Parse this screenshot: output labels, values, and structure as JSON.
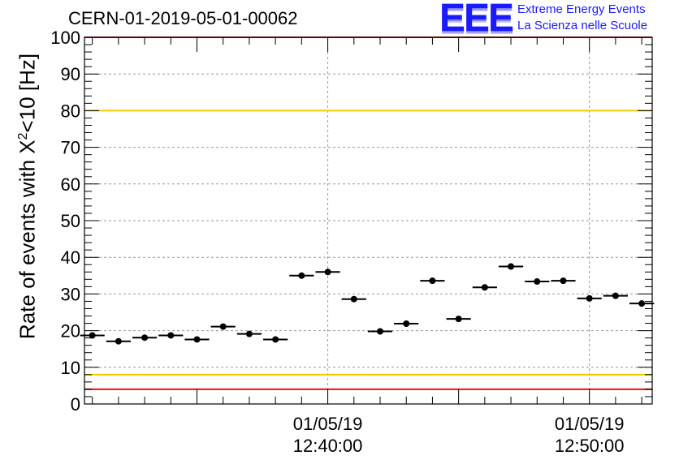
{
  "header": {
    "run_id": "CERN-01-2019-05-01-00062",
    "logo_text": "EEE",
    "logo_line1": "Extreme Energy Events",
    "logo_line2": "La Scienza nelle Scuole"
  },
  "colors": {
    "red_limit": "#ee1111",
    "yellow_limit": "#eecc00",
    "marker": "#000000",
    "grid": "#999999",
    "logo": "#1a1aff"
  },
  "chart_data": {
    "type": "scatter",
    "title": "",
    "ylabel_prefix": "Rate of events with X",
    "ylabel_sup": "2",
    "ylabel_suffix": "<10 [Hz]",
    "ylim": [
      0,
      100
    ],
    "yticks": [
      0,
      10,
      20,
      30,
      40,
      50,
      60,
      70,
      80,
      90,
      100
    ],
    "xlim_minutes": [
      -9.3,
      12.4
    ],
    "xtick_labels": [
      {
        "minute": 0,
        "date": "01/05/19",
        "time": "12:40:00"
      },
      {
        "minute": 10,
        "date": "01/05/19",
        "time": "12:50:00"
      }
    ],
    "grid": true,
    "reference_lines": [
      {
        "y": 80,
        "color": "yellow"
      },
      {
        "y": 8,
        "color": "yellow"
      },
      {
        "y": 100,
        "color": "red"
      },
      {
        "y": 4,
        "color": "red"
      }
    ],
    "bin_width_minutes": 1.0,
    "series": [
      {
        "x": [
          -9.0,
          -8.0,
          -7.0,
          -6.0,
          -5.0,
          -4.0,
          -3.0,
          -2.0,
          -1.0,
          0.0,
          1.0,
          2.0,
          3.0,
          4.0,
          5.0,
          6.0,
          7.0,
          8.0,
          9.0,
          10.0,
          11.0,
          12.0
        ],
        "values": [
          18.7,
          17.1,
          18.1,
          18.7,
          17.6,
          21.1,
          19.1,
          17.6,
          35.0,
          36.0,
          28.6,
          19.8,
          21.9,
          33.6,
          23.2,
          31.8,
          37.5,
          33.4,
          33.6,
          28.8,
          29.5,
          27.4
        ]
      }
    ]
  }
}
